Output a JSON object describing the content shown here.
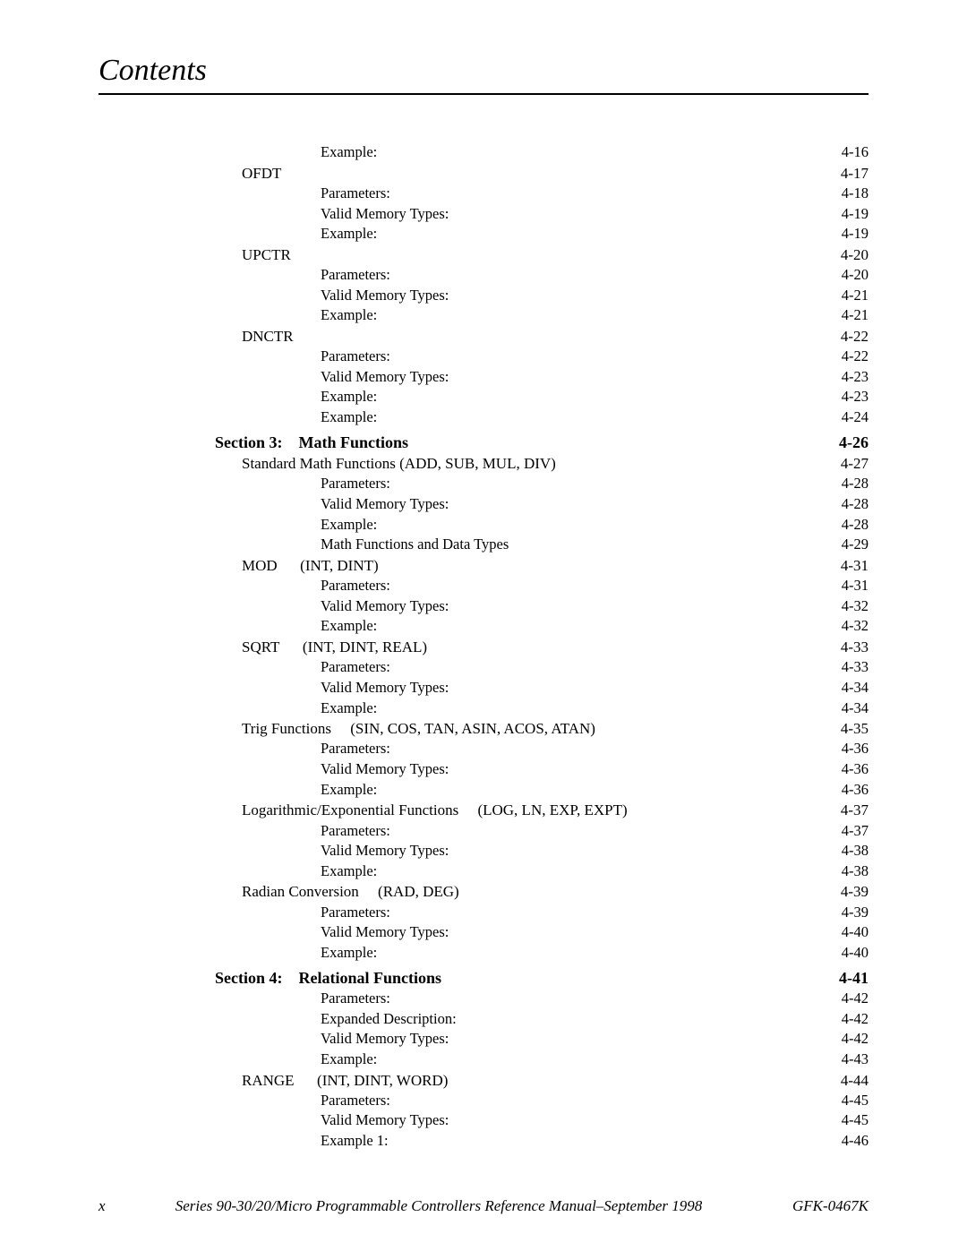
{
  "title": "Contents",
  "footer": {
    "page_number": "x",
    "center": "Series 90-30/20/Micro Programmable Controllers Reference Manual–September 1998",
    "right": "GFK-0467K"
  },
  "entries": [
    {
      "level": 2,
      "label": "Example:",
      "page": "4-16"
    },
    {
      "level": 1,
      "label": "OFDT",
      "page": "4-17"
    },
    {
      "level": 2,
      "label": "Parameters:",
      "page": "4-18"
    },
    {
      "level": 2,
      "label": "Valid Memory Types:",
      "page": "4-19"
    },
    {
      "level": 2,
      "label": "Example:",
      "page": "4-19"
    },
    {
      "level": 1,
      "label": "UPCTR",
      "page": "4-20"
    },
    {
      "level": 2,
      "label": "Parameters:",
      "page": "4-20"
    },
    {
      "level": 2,
      "label": "Valid Memory Types:",
      "page": "4-21"
    },
    {
      "level": 2,
      "label": "Example:",
      "page": "4-21"
    },
    {
      "level": 1,
      "label": "DNCTR",
      "page": "4-22"
    },
    {
      "level": 2,
      "label": "Parameters:",
      "page": "4-22"
    },
    {
      "level": 2,
      "label": "Valid Memory Types:",
      "page": "4-23"
    },
    {
      "level": 2,
      "label": "Example:",
      "page": "4-23"
    },
    {
      "level": 2,
      "label": "Example:",
      "page": "4-24"
    },
    {
      "level": 0,
      "label": "Section 3: Math Functions",
      "page": "4-26"
    },
    {
      "level": 1,
      "label": "Standard Math Functions (ADD, SUB, MUL, DIV)",
      "page": "4-27"
    },
    {
      "level": 2,
      "label": "Parameters:",
      "page": "4-28"
    },
    {
      "level": 2,
      "label": "Valid Memory Types:",
      "page": "4-28"
    },
    {
      "level": 2,
      "label": "Example:",
      "page": "4-28"
    },
    {
      "level": 2,
      "label": "Math Functions and Data Types",
      "page": "4-29"
    },
    {
      "level": 1,
      "label": "MOD  (INT, DINT)",
      "page": "4-31"
    },
    {
      "level": 2,
      "label": "Parameters:",
      "page": "4-31"
    },
    {
      "level": 2,
      "label": "Valid Memory Types:",
      "page": "4-32"
    },
    {
      "level": 2,
      "label": "Example:",
      "page": "4-32"
    },
    {
      "level": 1,
      "label": "SQRT  (INT, DINT, REAL)",
      "page": "4-33"
    },
    {
      "level": 2,
      "label": "Parameters:",
      "page": "4-33"
    },
    {
      "level": 2,
      "label": "Valid Memory Types:",
      "page": "4-34"
    },
    {
      "level": 2,
      "label": "Example:",
      "page": "4-34"
    },
    {
      "level": 1,
      "label": "Trig Functions  (SIN, COS, TAN, ASIN, ACOS, ATAN)",
      "page": "4-35"
    },
    {
      "level": 2,
      "label": "Parameters:",
      "page": "4-36"
    },
    {
      "level": 2,
      "label": "Valid Memory Types:",
      "page": "4-36"
    },
    {
      "level": 2,
      "label": "Example:",
      "page": "4-36"
    },
    {
      "level": 1,
      "label": "Logarithmic/Exponential Functions  (LOG, LN, EXP, EXPT)",
      "page": "4-37"
    },
    {
      "level": 2,
      "label": "Parameters:",
      "page": "4-37"
    },
    {
      "level": 2,
      "label": "Valid Memory Types:",
      "page": "4-38"
    },
    {
      "level": 2,
      "label": "Example:",
      "page": "4-38"
    },
    {
      "level": 1,
      "label": "Radian Conversion  (RAD, DEG)",
      "page": "4-39"
    },
    {
      "level": 2,
      "label": "Parameters:",
      "page": "4-39"
    },
    {
      "level": 2,
      "label": "Valid Memory Types:",
      "page": "4-40"
    },
    {
      "level": 2,
      "label": "Example:",
      "page": "4-40"
    },
    {
      "level": 0,
      "label": "Section 4: Relational Functions",
      "page": "4-41"
    },
    {
      "level": 2,
      "label": "Parameters:",
      "page": "4-42"
    },
    {
      "level": 2,
      "label": "Expanded Description:",
      "page": "4-42"
    },
    {
      "level": 2,
      "label": "Valid Memory Types:",
      "page": "4-42"
    },
    {
      "level": 2,
      "label": "Example:",
      "page": "4-43"
    },
    {
      "level": 1,
      "label": "RANGE  (INT, DINT, WORD)",
      "page": "4-44"
    },
    {
      "level": 2,
      "label": "Parameters:",
      "page": "4-45"
    },
    {
      "level": 2,
      "label": "Valid Memory Types:",
      "page": "4-45"
    },
    {
      "level": 2,
      "label": "Example 1:",
      "page": "4-46"
    }
  ]
}
